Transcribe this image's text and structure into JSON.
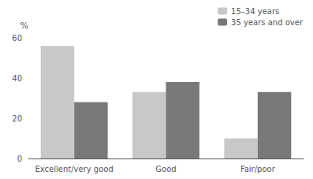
{
  "chart_data": {
    "type": "bar",
    "categories": [
      "Excellent/very good",
      "Good",
      "Fair/poor"
    ],
    "series": [
      {
        "name": "15–34 years",
        "color": "#c8c8c8",
        "values": [
          56,
          33,
          10
        ]
      },
      {
        "name": "35 years and over",
        "color": "#787878",
        "values": [
          28,
          38,
          33
        ]
      }
    ],
    "y_label": "%",
    "ylim": [
      0,
      60
    ],
    "yticks": [
      0,
      20,
      40,
      60
    ],
    "grid": false,
    "legend": "upper right"
  }
}
